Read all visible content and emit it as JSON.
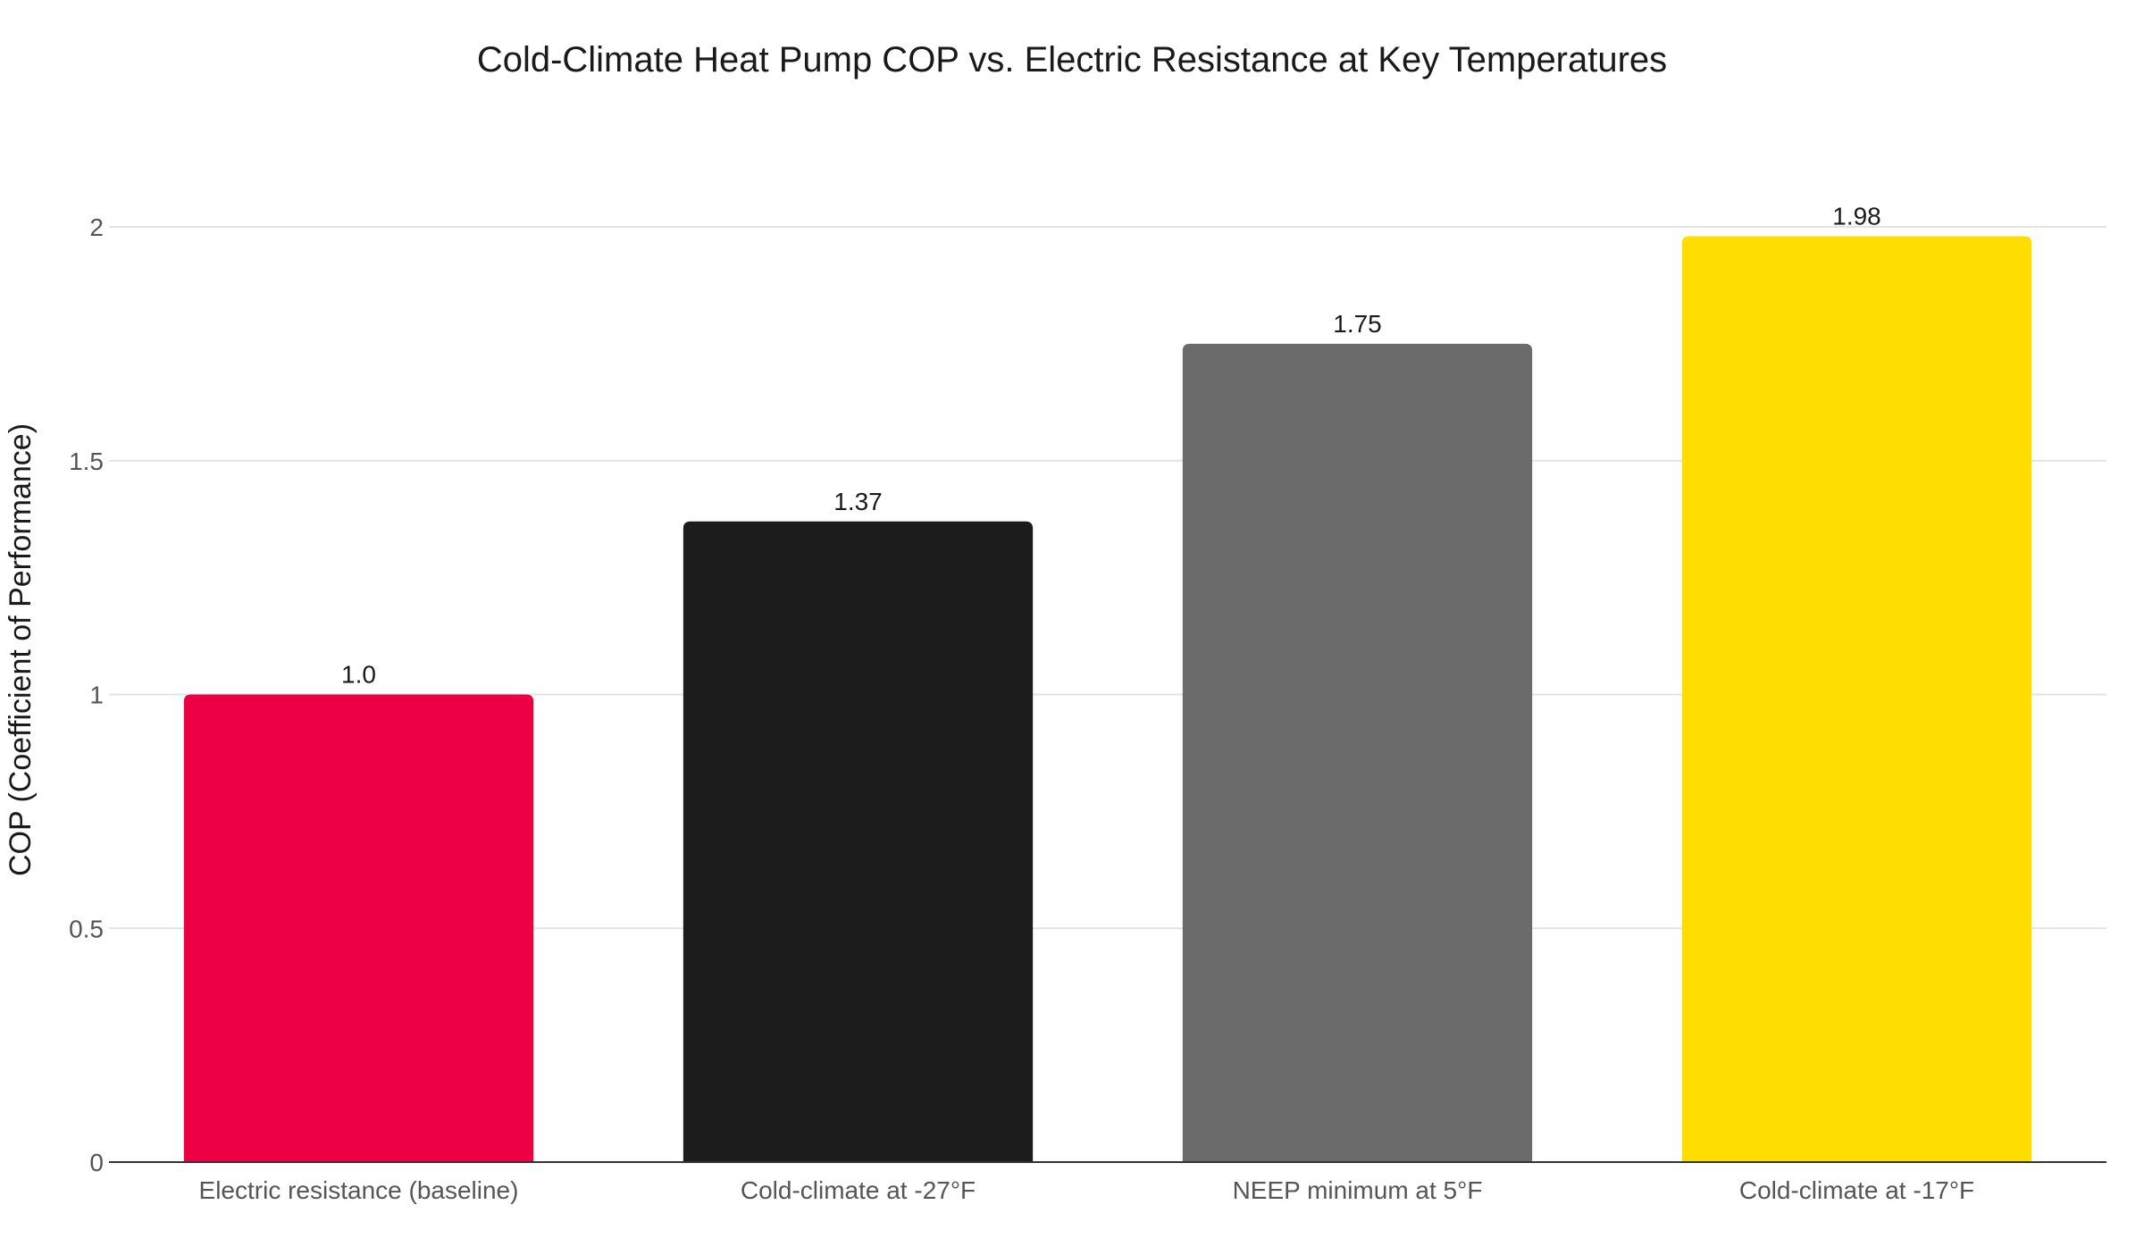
{
  "chart_data": {
    "type": "bar",
    "title": "Cold-Climate Heat Pump COP vs. Electric Resistance at Key Temperatures",
    "xlabel": "",
    "ylabel": "COP (Coefficient of Performance)",
    "categories": [
      "Electric resistance (baseline)",
      "Cold-climate at -27°F",
      "NEEP minimum at 5°F",
      "Cold-climate at -17°F"
    ],
    "values": [
      1.0,
      1.37,
      1.75,
      1.98
    ],
    "value_labels": [
      "1.0",
      "1.37",
      "1.75",
      "1.98"
    ],
    "colors": [
      "#ee0044",
      "#1c1c1c",
      "#6b6b6b",
      "#ffdd00"
    ],
    "ylim": [
      0,
      2
    ],
    "yticks": [
      0,
      0.5,
      1,
      1.5,
      2
    ],
    "ytick_labels": [
      "0",
      "0.5",
      "1",
      "1.5",
      "2"
    ],
    "grid": true,
    "legend": "none"
  }
}
